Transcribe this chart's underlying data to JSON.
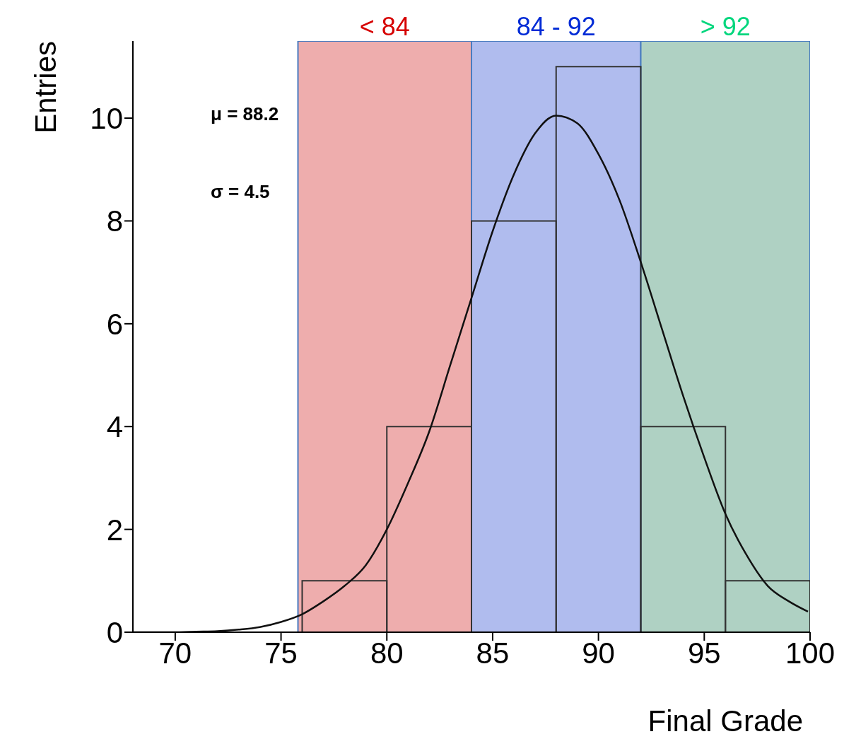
{
  "chart_data": {
    "type": "histogram",
    "xlabel": "Final Grade",
    "ylabel": "Entries",
    "xlim": [
      68,
      100
    ],
    "xticks": [
      70,
      75,
      80,
      85,
      90,
      95,
      100
    ],
    "ylim": [
      0,
      11.5
    ],
    "yticks": [
      0,
      2,
      4,
      6,
      8,
      10
    ],
    "annotations": [
      "μ = 88.2",
      "σ = 4.5"
    ],
    "bands": [
      {
        "axis": "x",
        "from": 75.8,
        "to": 84,
        "label": "< 84",
        "color": "#eeadad"
      },
      {
        "axis": "x",
        "from": 84,
        "to": 92,
        "label": "84 - 92",
        "color": "#b0bcee"
      },
      {
        "axis": "x",
        "from": 92,
        "to": 100,
        "label": "> 92",
        "color": "#afd1c3"
      }
    ],
    "series": [
      {
        "bins": [
          68,
          72,
          76,
          80,
          84,
          88,
          92,
          96,
          100
        ],
        "values": [
          0,
          0,
          1,
          4,
          8,
          11,
          4,
          1
        ],
        "color": "#333333"
      },
      {
        "type": "line",
        "color": "#111111",
        "x": [
          68,
          69,
          70,
          71,
          72,
          73,
          74,
          75,
          76,
          77,
          78,
          79,
          80,
          81,
          82,
          83,
          84,
          85,
          86,
          87,
          88,
          89,
          90,
          91,
          92,
          93,
          94,
          95,
          96,
          97,
          98,
          99,
          99.9
        ],
        "values": [
          0,
          0,
          0,
          0.01,
          0.02,
          0.05,
          0.1,
          0.2,
          0.35,
          0.6,
          0.9,
          1.3,
          2.0,
          2.9,
          3.9,
          5.2,
          6.5,
          7.8,
          8.9,
          9.7,
          10.05,
          9.9,
          9.3,
          8.4,
          7.2,
          5.9,
          4.6,
          3.4,
          2.3,
          1.5,
          0.9,
          0.6,
          0.4
        ]
      }
    ]
  }
}
